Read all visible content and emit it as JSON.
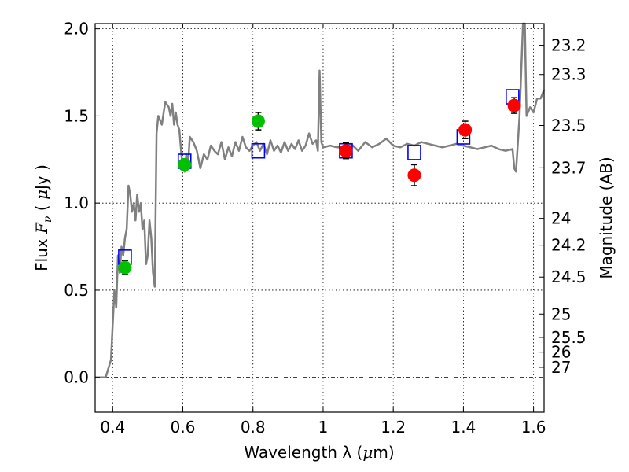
{
  "chart_data": {
    "type": "scatter",
    "title": "",
    "xlabel_text": "Wavelength  λ (",
    "xlabel_mu": "μ",
    "xlabel_unit": "m)",
    "ylabel_text": "Flux  ",
    "ylabel_F": "F",
    "ylabel_nu": "ν",
    "ylabel_paren_open": "  ( ",
    "ylabel_mu": "μ",
    "ylabel_unit": "Jy )",
    "y2label": "Magnitude (AB)",
    "xlim": [
      0.35,
      1.63
    ],
    "ylim": [
      -0.2,
      2.03
    ],
    "grid": true,
    "x_ticks": [
      {
        "v": 0.4,
        "label": "0.4"
      },
      {
        "v": 0.6,
        "label": "0.6"
      },
      {
        "v": 0.8,
        "label": "0.8"
      },
      {
        "v": 1.0,
        "label": "1"
      },
      {
        "v": 1.2,
        "label": "1.2"
      },
      {
        "v": 1.4,
        "label": "1.4"
      },
      {
        "v": 1.6,
        "label": "1.6"
      }
    ],
    "y_ticks": [
      {
        "v": 0.0,
        "label": "0.0"
      },
      {
        "v": 0.5,
        "label": "0.5"
      },
      {
        "v": 1.0,
        "label": "1.0"
      },
      {
        "v": 1.5,
        "label": "1.5"
      },
      {
        "v": 2.0,
        "label": "2.0"
      }
    ],
    "mag_ticks": [
      {
        "mag": 23.2,
        "label": "23.2"
      },
      {
        "mag": 23.3,
        "label": "23.3"
      },
      {
        "mag": 23.5,
        "label": "23.5"
      },
      {
        "mag": 23.7,
        "label": "23.7"
      },
      {
        "mag": 24,
        "label": "24"
      },
      {
        "mag": 24.2,
        "label": "24.2"
      },
      {
        "mag": 24.5,
        "label": "24.5"
      },
      {
        "mag": 25,
        "label": "25"
      },
      {
        "mag": 25.5,
        "label": "25.5"
      },
      {
        "mag": 26,
        "label": "26"
      },
      {
        "mag": 27,
        "label": "27"
      }
    ],
    "model_sed": {
      "color": "#808080",
      "x": [
        0.35,
        0.38,
        0.395,
        0.4,
        0.405,
        0.41,
        0.415,
        0.42,
        0.425,
        0.43,
        0.435,
        0.44,
        0.445,
        0.45,
        0.455,
        0.46,
        0.465,
        0.47,
        0.475,
        0.48,
        0.485,
        0.49,
        0.495,
        0.5,
        0.505,
        0.51,
        0.515,
        0.52,
        0.525,
        0.53,
        0.54,
        0.55,
        0.56,
        0.565,
        0.57,
        0.575,
        0.58,
        0.585,
        0.59,
        0.595,
        0.6,
        0.605,
        0.61,
        0.615,
        0.62,
        0.63,
        0.64,
        0.65,
        0.66,
        0.67,
        0.68,
        0.69,
        0.7,
        0.71,
        0.72,
        0.73,
        0.74,
        0.75,
        0.76,
        0.77,
        0.78,
        0.79,
        0.8,
        0.81,
        0.82,
        0.83,
        0.84,
        0.85,
        0.86,
        0.87,
        0.88,
        0.89,
        0.9,
        0.91,
        0.92,
        0.93,
        0.94,
        0.95,
        0.96,
        0.97,
        0.98,
        0.985,
        0.99,
        0.995,
        1.0,
        1.02,
        1.04,
        1.06,
        1.08,
        1.1,
        1.12,
        1.14,
        1.16,
        1.18,
        1.2,
        1.22,
        1.24,
        1.26,
        1.28,
        1.3,
        1.32,
        1.34,
        1.36,
        1.38,
        1.4,
        1.42,
        1.44,
        1.46,
        1.48,
        1.5,
        1.52,
        1.54,
        1.545,
        1.55,
        1.56,
        1.57,
        1.575,
        1.58,
        1.59,
        1.6,
        1.61,
        1.62,
        1.63
      ],
      "y": [
        0.0,
        0.0,
        0.1,
        0.3,
        0.5,
        0.4,
        0.7,
        0.6,
        0.75,
        0.7,
        0.8,
        0.85,
        1.1,
        1.05,
        0.95,
        1.0,
        0.9,
        1.05,
        0.95,
        1.0,
        0.85,
        0.9,
        0.65,
        0.7,
        0.9,
        0.8,
        0.6,
        0.52,
        1.4,
        1.5,
        1.45,
        1.58,
        1.55,
        1.5,
        1.57,
        1.45,
        1.52,
        1.45,
        1.42,
        1.3,
        1.2,
        1.18,
        1.28,
        1.22,
        1.38,
        1.35,
        1.3,
        1.2,
        1.28,
        1.25,
        1.33,
        1.3,
        1.28,
        1.35,
        1.25,
        1.32,
        1.27,
        1.35,
        1.3,
        1.38,
        1.32,
        1.3,
        1.33,
        1.35,
        1.3,
        1.34,
        1.28,
        1.36,
        1.3,
        1.33,
        1.29,
        1.35,
        1.3,
        1.34,
        1.31,
        1.36,
        1.3,
        1.33,
        1.4,
        1.34,
        1.36,
        1.3,
        1.76,
        1.35,
        1.32,
        1.33,
        1.32,
        1.32,
        1.34,
        1.3,
        1.35,
        1.32,
        1.34,
        1.37,
        1.33,
        1.32,
        1.34,
        1.33,
        1.35,
        1.34,
        1.33,
        1.32,
        1.33,
        1.34,
        1.33,
        1.32,
        1.31,
        1.32,
        1.33,
        1.31,
        1.3,
        1.31,
        1.2,
        1.18,
        1.5,
        2.03,
        2.03,
        1.5,
        1.55,
        1.52,
        1.6,
        1.6,
        1.65
      ]
    },
    "series": [
      {
        "name": "",
        "marker": "open-square",
        "color": "#0000ff",
        "points": [
          {
            "x": 0.435,
            "y": 0.69
          },
          {
            "x": 0.605,
            "y": 1.24
          },
          {
            "x": 0.815,
            "y": 1.3
          },
          {
            "x": 1.065,
            "y": 1.3
          },
          {
            "x": 1.26,
            "y": 1.29
          },
          {
            "x": 1.4,
            "y": 1.38
          },
          {
            "x": 1.54,
            "y": 1.61
          }
        ]
      },
      {
        "name": "",
        "marker": "filled-circle",
        "color": "#00c000",
        "points": [
          {
            "x": 0.435,
            "y": 0.63,
            "err": 0.04
          },
          {
            "x": 0.605,
            "y": 1.22,
            "err": 0.025
          },
          {
            "x": 0.815,
            "y": 1.47,
            "err": 0.05
          }
        ]
      },
      {
        "name": "",
        "marker": "filled-circle",
        "color": "#ff0000",
        "points": [
          {
            "x": 1.065,
            "y": 1.3,
            "err": 0.045
          },
          {
            "x": 1.26,
            "y": 1.16,
            "err": 0.06
          },
          {
            "x": 1.405,
            "y": 1.42,
            "err": 0.05
          },
          {
            "x": 1.545,
            "y": 1.56,
            "err": 0.045
          }
        ]
      }
    ]
  }
}
